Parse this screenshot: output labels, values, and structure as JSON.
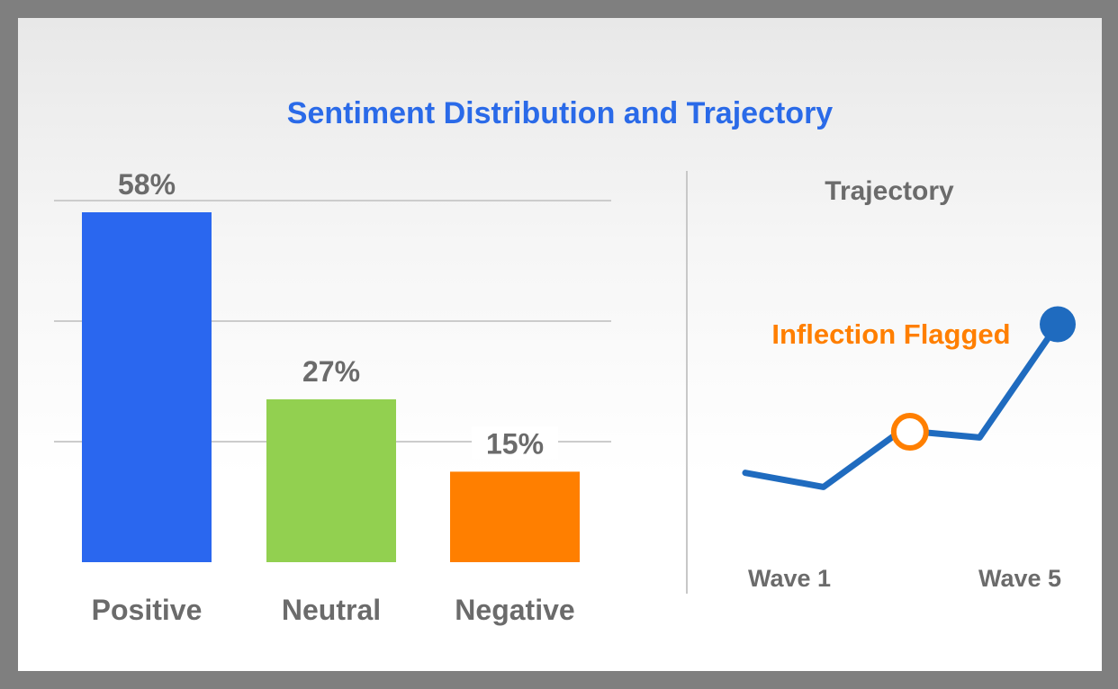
{
  "title": "Sentiment Distribution and Trajectory",
  "colors": {
    "title": "#2a6ae8",
    "positive": "#2a67ef",
    "neutral": "#92d050",
    "negative": "#ff7f00",
    "line": "#1f6bbf",
    "marker": "#1f6bbf",
    "inflection": "#ff7f00",
    "grid": "#cccccc",
    "text": "#6b6b6b"
  },
  "chart_data": [
    {
      "type": "bar",
      "categories": [
        "Positive",
        "Neutral",
        "Negative"
      ],
      "values": [
        58,
        27,
        15
      ],
      "value_labels": [
        "58%",
        "27%",
        "15%"
      ],
      "ylim": [
        0,
        60
      ],
      "grid": true
    },
    {
      "type": "line",
      "title": "Trajectory",
      "x": [
        1,
        2,
        3,
        4,
        5
      ],
      "x_tick_labels": [
        "Wave 1",
        "Wave 5"
      ],
      "y": [
        0.5,
        0.3,
        1.1,
        1.0,
        2.6
      ],
      "ylim": [
        0,
        3
      ],
      "annotation": {
        "text": "Inflection Flagged",
        "x": 3.2
      },
      "end_marker": true
    }
  ]
}
